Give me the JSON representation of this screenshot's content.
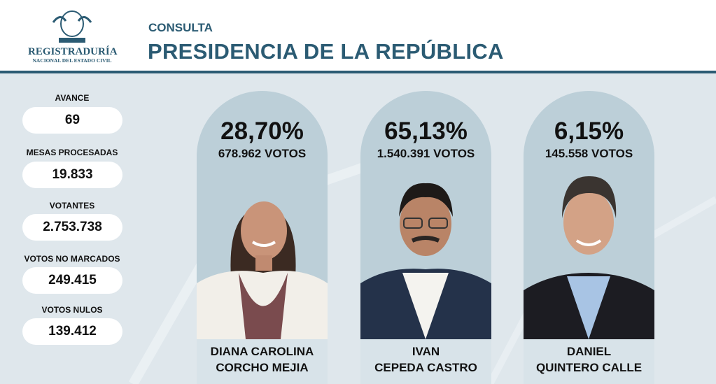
{
  "header": {
    "logo_title": "REGISTRADURÍA",
    "logo_subtitle": "NACIONAL DEL ESTADO CIVIL",
    "kicker": "CONSULTA",
    "title": "PRESIDENCIA DE LA REPÚBLICA"
  },
  "stats": [
    {
      "label": "AVANCE",
      "value": "69"
    },
    {
      "label": "MESAS PROCESADAS",
      "value": "19.833"
    },
    {
      "label": "VOTANTES",
      "value": "2.753.738"
    },
    {
      "label": "VOTOS NO MARCADOS",
      "value": "249.415"
    },
    {
      "label": "VOTOS NULOS",
      "value": "139.412"
    }
  ],
  "candidates": [
    {
      "percent": "28,70%",
      "votes": "678.962 VOTOS",
      "name": [
        "DIANA CAROLINA",
        "CORCHO MEJIA"
      ]
    },
    {
      "percent": "65,13%",
      "votes": "1.540.391 VOTOS",
      "name": [
        "IVAN",
        "CEPEDA CASTRO"
      ]
    },
    {
      "percent": "6,15%",
      "votes": "145.558 VOTOS",
      "name": [
        "DANIEL",
        "QUINTERO CALLE"
      ]
    }
  ]
}
